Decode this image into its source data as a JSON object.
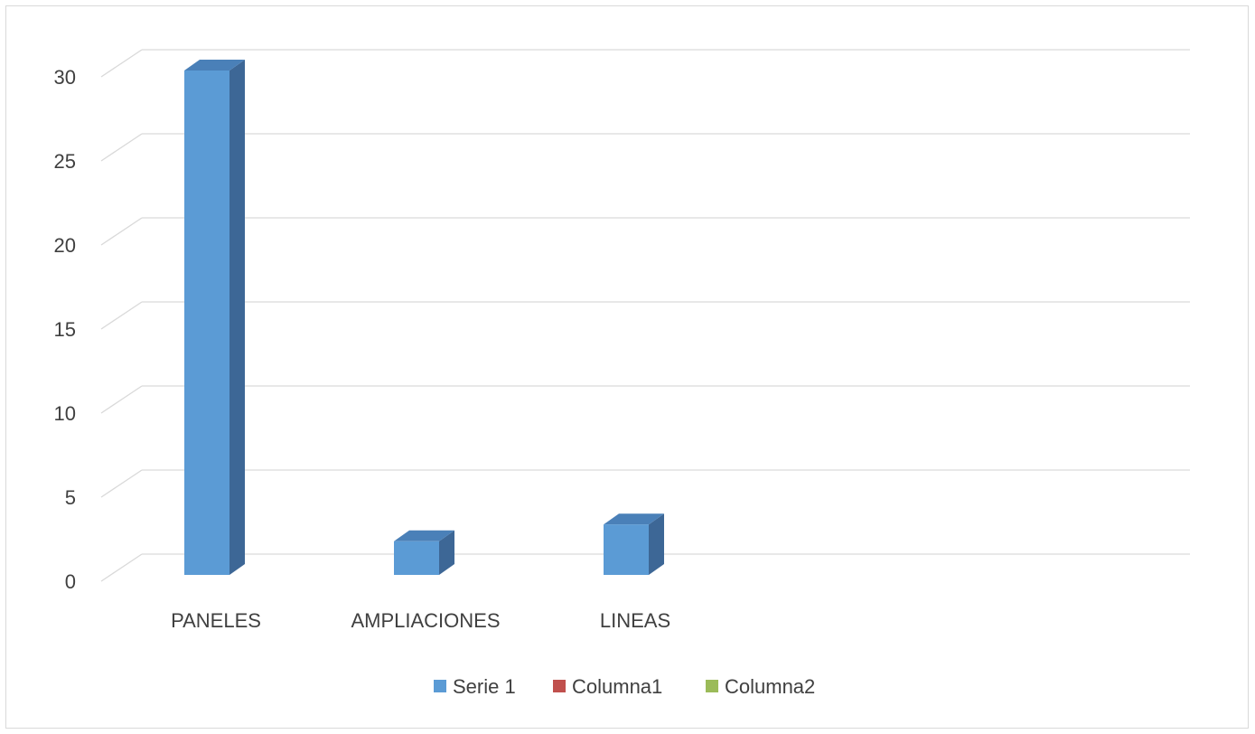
{
  "chart_data": {
    "type": "bar",
    "categories": [
      "PANELES",
      "AMPLIACIONES",
      "LINEAS",
      "",
      ""
    ],
    "series": [
      {
        "name": "Serie 1",
        "values": [
          30,
          2,
          3,
          null,
          null
        ],
        "color": "#5b9bd5",
        "side_color": "#3d6796",
        "top_color": "#4a80b8"
      },
      {
        "name": "Columna1",
        "values": [
          null,
          null,
          null,
          null,
          null
        ],
        "color": "#c0504d"
      },
      {
        "name": "Columna2",
        "values": [
          null,
          null,
          null,
          null,
          null
        ],
        "color": "#9bbb59"
      }
    ],
    "yticks": [
      "0",
      "5",
      "10",
      "15",
      "20",
      "25",
      "30"
    ],
    "ylim": [
      0,
      30
    ],
    "grid": true,
    "legend_position": "bottom",
    "title": "",
    "xlabel": "",
    "ylabel": ""
  }
}
